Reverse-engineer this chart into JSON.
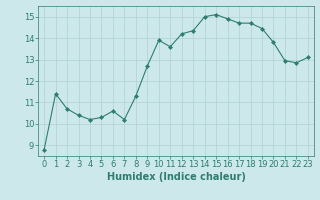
{
  "x": [
    0,
    1,
    2,
    3,
    4,
    5,
    6,
    7,
    8,
    9,
    10,
    11,
    12,
    13,
    14,
    15,
    16,
    17,
    18,
    19,
    20,
    21,
    22,
    23
  ],
  "y": [
    8.8,
    11.4,
    10.7,
    10.4,
    10.2,
    10.3,
    10.6,
    10.2,
    11.3,
    12.7,
    13.9,
    13.6,
    14.2,
    14.35,
    15.0,
    15.1,
    14.9,
    14.7,
    14.7,
    14.45,
    13.8,
    12.95,
    12.85,
    13.1
  ],
  "line_color": "#2e7d6e",
  "marker": "D",
  "marker_size": 2,
  "bg_color": "#cde8ea",
  "grid_color": "#b0d0d2",
  "xlabel": "Humidex (Indice chaleur)",
  "xlim": [
    -0.5,
    23.5
  ],
  "ylim": [
    8.5,
    15.5
  ],
  "yticks": [
    9,
    10,
    11,
    12,
    13,
    14,
    15
  ],
  "xticks": [
    0,
    1,
    2,
    3,
    4,
    5,
    6,
    7,
    8,
    9,
    10,
    11,
    12,
    13,
    14,
    15,
    16,
    17,
    18,
    19,
    20,
    21,
    22,
    23
  ],
  "tick_color": "#2e7d6e",
  "label_color": "#2e7d6e",
  "tick_fontsize": 6,
  "xlabel_fontsize": 7
}
